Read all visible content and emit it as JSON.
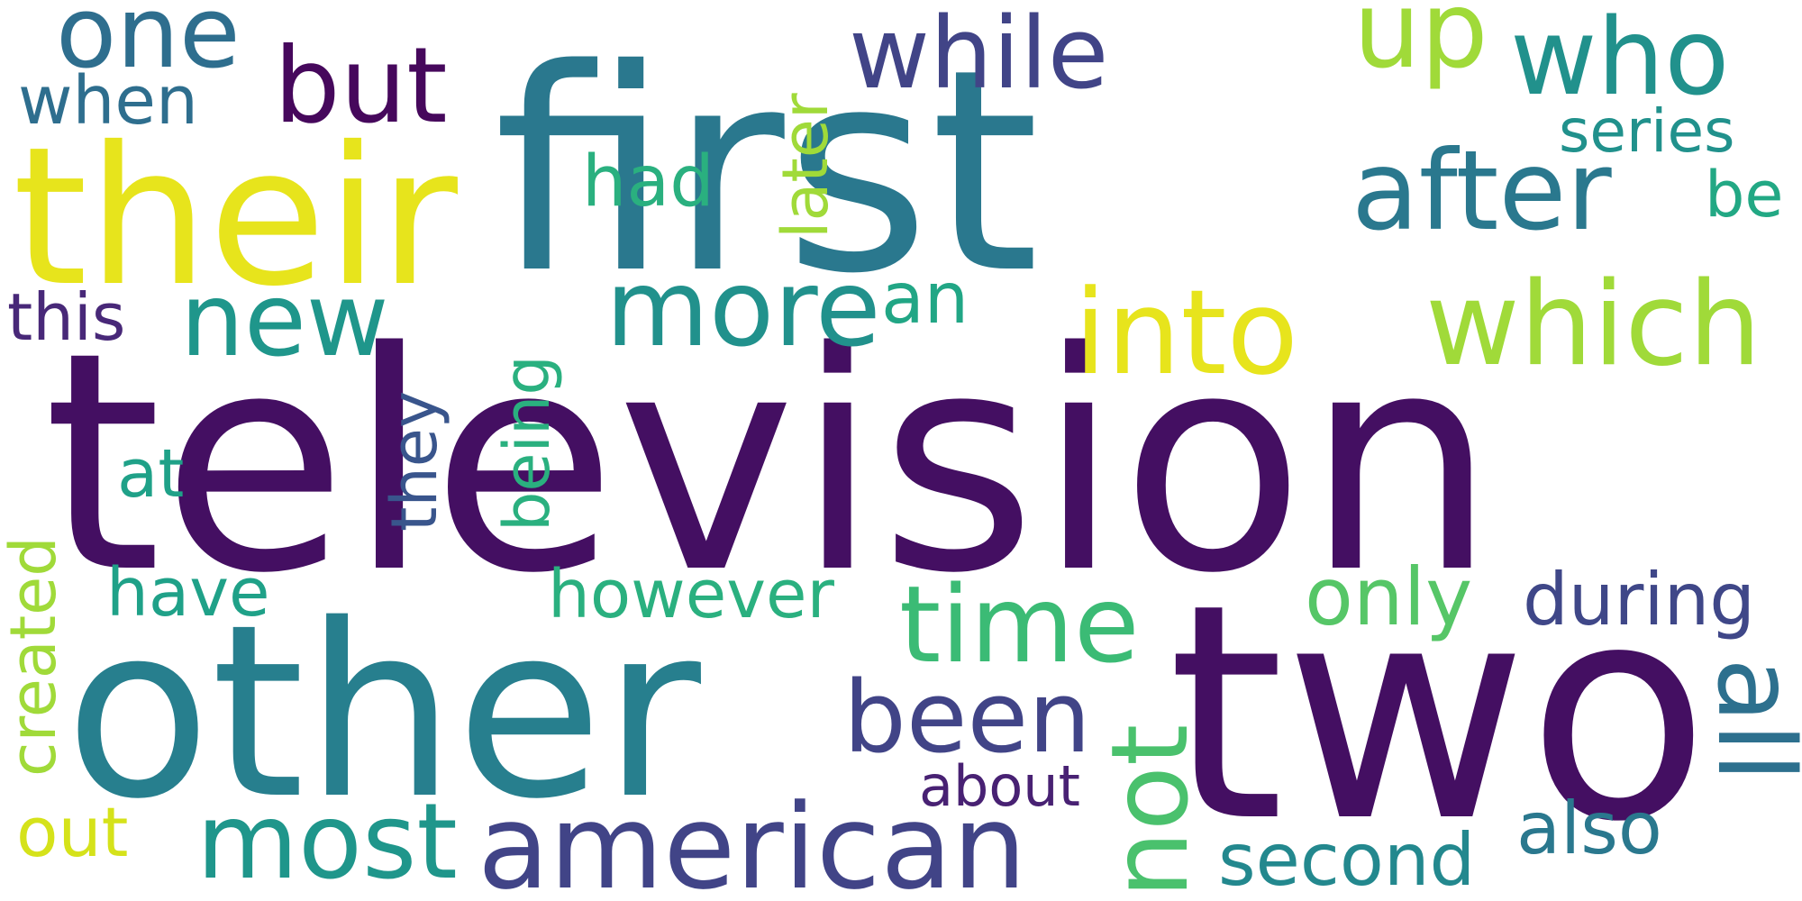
{
  "words": {
    "television": {
      "text": "television",
      "color": "#440f62"
    },
    "first": {
      "text": "first",
      "color": "#2a788e"
    },
    "other": {
      "text": "other",
      "color": "#277f8e"
    },
    "two": {
      "text": "two",
      "color": "#440f62"
    },
    "their": {
      "text": "their",
      "color": "#e7e41c"
    },
    "american": {
      "text": "american",
      "color": "#414487"
    },
    "after": {
      "text": "after",
      "color": "#2a788e"
    },
    "which": {
      "text": "which",
      "color": "#a0da39"
    },
    "into": {
      "text": "into",
      "color": "#e7e41c"
    },
    "more": {
      "text": "more",
      "color": "#21918c"
    },
    "new": {
      "text": "new",
      "color": "#1f968b"
    },
    "but": {
      "text": "but",
      "color": "#46085c"
    },
    "one": {
      "text": "one",
      "color": "#2e6e8e"
    },
    "while": {
      "text": "while",
      "color": "#414487"
    },
    "who": {
      "text": "who",
      "color": "#21918c"
    },
    "up": {
      "text": "up",
      "color": "#a0da39"
    },
    "time": {
      "text": "time",
      "color": "#3bbb75"
    },
    "been": {
      "text": "been",
      "color": "#414487"
    },
    "most": {
      "text": "most",
      "color": "#1f968b"
    },
    "not": {
      "text": "not",
      "color": "#4ac16d"
    },
    "all": {
      "text": "all",
      "color": "#2d708e"
    },
    "second": {
      "text": "second",
      "color": "#23888e"
    },
    "also": {
      "text": "also",
      "color": "#2a788e"
    },
    "only": {
      "text": "only",
      "color": "#56c667"
    },
    "during": {
      "text": "during",
      "color": "#3f4788"
    },
    "however": {
      "text": "however",
      "color": "#2ab07f"
    },
    "have": {
      "text": "have",
      "color": "#1fa188"
    },
    "created": {
      "text": "created",
      "color": "#a0da39"
    },
    "out": {
      "text": "out",
      "color": "#d5e21a"
    },
    "about": {
      "text": "about",
      "color": "#482173"
    },
    "being": {
      "text": "being",
      "color": "#2ab07f"
    },
    "they": {
      "text": "they",
      "color": "#39558c"
    },
    "later": {
      "text": "later",
      "color": "#a0da39"
    },
    "had": {
      "text": "had",
      "color": "#2ab07f"
    },
    "an": {
      "text": "an",
      "color": "#21a685"
    },
    "at": {
      "text": "at",
      "color": "#1fa188"
    },
    "this": {
      "text": "this",
      "color": "#482878"
    },
    "when": {
      "text": "when",
      "color": "#2e6e8e"
    },
    "series": {
      "text": "series",
      "color": "#21918c"
    },
    "be": {
      "text": "be",
      "color": "#22a884"
    }
  }
}
